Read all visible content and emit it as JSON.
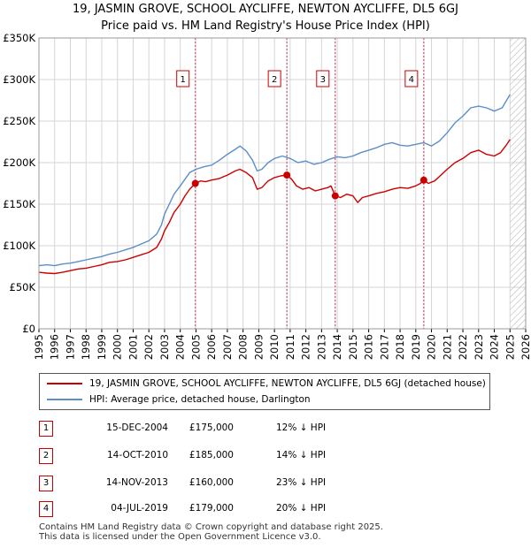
{
  "chart_data": {
    "type": "line",
    "title": "19, JASMIN GROVE, SCHOOL AYCLIFFE, NEWTON AYCLIFFE, DL5 6GJ",
    "subtitle": "Price paid vs. HM Land Registry's House Price Index (HPI)",
    "xlabel": "",
    "ylabel": "",
    "xlim": [
      1995,
      2026
    ],
    "ylim": [
      0,
      350000
    ],
    "y_ticks": [
      {
        "value": 0,
        "label": "£0"
      },
      {
        "value": 50000,
        "label": "£50K"
      },
      {
        "value": 100000,
        "label": "£100K"
      },
      {
        "value": 150000,
        "label": "£150K"
      },
      {
        "value": 200000,
        "label": "£200K"
      },
      {
        "value": 250000,
        "label": "£250K"
      },
      {
        "value": 300000,
        "label": "£300K"
      },
      {
        "value": 350000,
        "label": "£350K"
      }
    ],
    "x_ticks": [
      "1995",
      "1996",
      "1997",
      "1998",
      "1999",
      "2000",
      "2001",
      "2002",
      "2003",
      "2004",
      "2005",
      "2006",
      "2007",
      "2008",
      "2009",
      "2010",
      "2011",
      "2012",
      "2013",
      "2014",
      "2015",
      "2016",
      "2017",
      "2018",
      "2019",
      "2020",
      "2021",
      "2022",
      "2023",
      "2024",
      "2025",
      "2026"
    ],
    "grid": true,
    "future_hatch_start": 2025.0,
    "series": [
      {
        "name": "19, JASMIN GROVE, SCHOOL AYCLIFFE, NEWTON AYCLIFFE, DL5 6GJ (detached house)",
        "color": "#cc0000",
        "points": [
          [
            1995.0,
            68000
          ],
          [
            1995.5,
            67000
          ],
          [
            1996.0,
            66500
          ],
          [
            1996.5,
            68000
          ],
          [
            1997.0,
            70000
          ],
          [
            1997.5,
            72000
          ],
          [
            1998.0,
            73000
          ],
          [
            1998.5,
            75000
          ],
          [
            1999.0,
            77000
          ],
          [
            1999.5,
            80000
          ],
          [
            2000.0,
            81000
          ],
          [
            2000.5,
            83000
          ],
          [
            2001.0,
            86000
          ],
          [
            2001.5,
            89000
          ],
          [
            2002.0,
            92000
          ],
          [
            2002.5,
            98000
          ],
          [
            2002.8,
            108000
          ],
          [
            2003.0,
            118000
          ],
          [
            2003.3,
            128000
          ],
          [
            2003.6,
            140000
          ],
          [
            2004.0,
            150000
          ],
          [
            2004.3,
            160000
          ],
          [
            2004.6,
            168000
          ],
          [
            2004.96,
            175000
          ],
          [
            2005.3,
            178000
          ],
          [
            2005.6,
            177000
          ],
          [
            2006.0,
            179000
          ],
          [
            2006.5,
            181000
          ],
          [
            2007.0,
            185000
          ],
          [
            2007.5,
            190000
          ],
          [
            2007.8,
            192000
          ],
          [
            2008.2,
            188000
          ],
          [
            2008.6,
            182000
          ],
          [
            2008.9,
            168000
          ],
          [
            2009.2,
            170000
          ],
          [
            2009.6,
            178000
          ],
          [
            2010.0,
            182000
          ],
          [
            2010.4,
            184000
          ],
          [
            2010.79,
            185000
          ],
          [
            2011.1,
            180000
          ],
          [
            2011.4,
            172000
          ],
          [
            2011.8,
            168000
          ],
          [
            2012.2,
            170000
          ],
          [
            2012.6,
            166000
          ],
          [
            2013.0,
            168000
          ],
          [
            2013.4,
            170000
          ],
          [
            2013.6,
            172000
          ],
          [
            2013.87,
            160000
          ],
          [
            2014.2,
            158000
          ],
          [
            2014.6,
            162000
          ],
          [
            2015.0,
            160000
          ],
          [
            2015.3,
            152000
          ],
          [
            2015.6,
            158000
          ],
          [
            2016.0,
            160000
          ],
          [
            2016.5,
            163000
          ],
          [
            2017.0,
            165000
          ],
          [
            2017.5,
            168000
          ],
          [
            2018.0,
            170000
          ],
          [
            2018.5,
            169000
          ],
          [
            2019.0,
            172000
          ],
          [
            2019.3,
            175000
          ],
          [
            2019.51,
            179000
          ],
          [
            2019.8,
            175000
          ],
          [
            2020.2,
            178000
          ],
          [
            2020.6,
            185000
          ],
          [
            2021.0,
            192000
          ],
          [
            2021.5,
            200000
          ],
          [
            2022.0,
            205000
          ],
          [
            2022.5,
            212000
          ],
          [
            2023.0,
            215000
          ],
          [
            2023.5,
            210000
          ],
          [
            2024.0,
            208000
          ],
          [
            2024.4,
            212000
          ],
          [
            2024.8,
            222000
          ],
          [
            2025.0,
            228000
          ]
        ]
      },
      {
        "name": "HPI: Average price, detached house, Darlington",
        "color": "#5b8fc7",
        "points": [
          [
            1995.0,
            76000
          ],
          [
            1995.5,
            77000
          ],
          [
            1996.0,
            76000
          ],
          [
            1996.5,
            78000
          ],
          [
            1997.0,
            79000
          ],
          [
            1997.5,
            81000
          ],
          [
            1998.0,
            83000
          ],
          [
            1998.5,
            85000
          ],
          [
            1999.0,
            87000
          ],
          [
            1999.5,
            90000
          ],
          [
            2000.0,
            92000
          ],
          [
            2000.5,
            95000
          ],
          [
            2001.0,
            98000
          ],
          [
            2001.5,
            102000
          ],
          [
            2002.0,
            106000
          ],
          [
            2002.5,
            114000
          ],
          [
            2002.8,
            125000
          ],
          [
            2003.0,
            138000
          ],
          [
            2003.3,
            150000
          ],
          [
            2003.6,
            162000
          ],
          [
            2004.0,
            172000
          ],
          [
            2004.3,
            180000
          ],
          [
            2004.6,
            188000
          ],
          [
            2005.0,
            192000
          ],
          [
            2005.5,
            195000
          ],
          [
            2006.0,
            197000
          ],
          [
            2006.5,
            203000
          ],
          [
            2007.0,
            210000
          ],
          [
            2007.5,
            216000
          ],
          [
            2007.8,
            220000
          ],
          [
            2008.2,
            214000
          ],
          [
            2008.6,
            203000
          ],
          [
            2008.9,
            190000
          ],
          [
            2009.2,
            192000
          ],
          [
            2009.6,
            200000
          ],
          [
            2010.0,
            205000
          ],
          [
            2010.5,
            208000
          ],
          [
            2011.0,
            205000
          ],
          [
            2011.5,
            200000
          ],
          [
            2012.0,
            202000
          ],
          [
            2012.5,
            198000
          ],
          [
            2013.0,
            200000
          ],
          [
            2013.5,
            204000
          ],
          [
            2014.0,
            207000
          ],
          [
            2014.5,
            206000
          ],
          [
            2015.0,
            208000
          ],
          [
            2015.5,
            212000
          ],
          [
            2016.0,
            215000
          ],
          [
            2016.5,
            218000
          ],
          [
            2017.0,
            222000
          ],
          [
            2017.5,
            224000
          ],
          [
            2018.0,
            221000
          ],
          [
            2018.5,
            220000
          ],
          [
            2019.0,
            222000
          ],
          [
            2019.5,
            224000
          ],
          [
            2020.0,
            220000
          ],
          [
            2020.5,
            226000
          ],
          [
            2021.0,
            236000
          ],
          [
            2021.5,
            248000
          ],
          [
            2022.0,
            256000
          ],
          [
            2022.5,
            266000
          ],
          [
            2023.0,
            268000
          ],
          [
            2023.5,
            266000
          ],
          [
            2024.0,
            262000
          ],
          [
            2024.5,
            266000
          ],
          [
            2025.0,
            282000
          ]
        ]
      }
    ],
    "markers": [
      {
        "id": "1",
        "x": 2004.96,
        "y": 175000
      },
      {
        "id": "2",
        "x": 2010.79,
        "y": 185000
      },
      {
        "id": "3",
        "x": 2013.87,
        "y": 160000
      },
      {
        "id": "4",
        "x": 2019.51,
        "y": 179000
      }
    ]
  },
  "legend": {
    "items": [
      {
        "label": "19, JASMIN GROVE, SCHOOL AYCLIFFE, NEWTON AYCLIFFE, DL5 6GJ (detached house)",
        "color": "#cc0000"
      },
      {
        "label": "HPI: Average price, detached house, Darlington",
        "color": "#5b8fc7"
      }
    ]
  },
  "transactions": [
    {
      "id": "1",
      "date": "15-DEC-2004",
      "price": "£175,000",
      "hpi": "12% ↓ HPI"
    },
    {
      "id": "2",
      "date": "14-OCT-2010",
      "price": "£185,000",
      "hpi": "14% ↓ HPI"
    },
    {
      "id": "3",
      "date": "14-NOV-2013",
      "price": "£160,000",
      "hpi": "23% ↓ HPI"
    },
    {
      "id": "4",
      "date": "04-JUL-2019",
      "price": "£179,000",
      "hpi": "20% ↓ HPI"
    }
  ],
  "footer": {
    "line1": "Contains HM Land Registry data © Crown copyright and database right 2025.",
    "line2": "This data is licensed under the Open Government Licence v3.0."
  }
}
